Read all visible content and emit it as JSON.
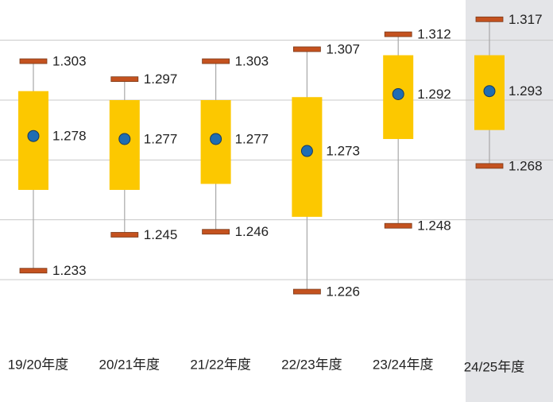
{
  "chart_data": {
    "type": "box",
    "categories": [
      "19/20年度",
      "20/21年度",
      "21/22年度",
      "22/23年度",
      "23/24年度",
      "24/25年度"
    ],
    "max": [
      1.303,
      1.297,
      1.303,
      1.307,
      1.312,
      1.317
    ],
    "q3": [
      1.293,
      1.29,
      1.29,
      1.291,
      1.305,
      1.305
    ],
    "median": [
      1.278,
      1.277,
      1.277,
      1.273,
      1.292,
      1.293
    ],
    "q1": [
      1.26,
      1.26,
      1.262,
      1.251,
      1.277,
      1.28
    ],
    "min": [
      1.233,
      1.245,
      1.246,
      1.226,
      1.248,
      1.268
    ],
    "box_color": "#fcc800",
    "cap_color": "#c4521f",
    "median_color": "#1f6db3",
    "ylim": [
      1.2,
      1.32
    ],
    "yticks": [
      1.23,
      1.25,
      1.27,
      1.29,
      1.31
    ],
    "grid": true
  }
}
